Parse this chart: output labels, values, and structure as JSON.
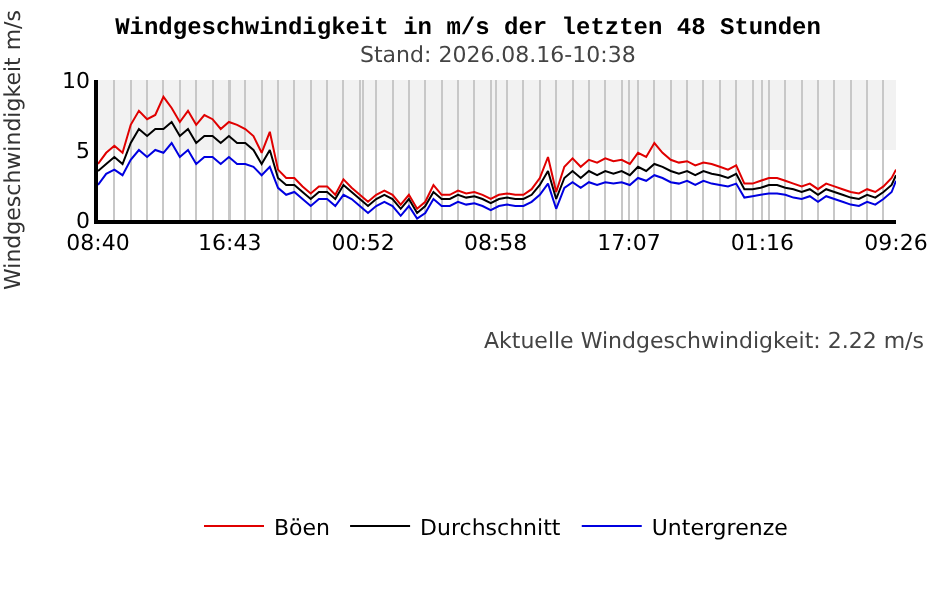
{
  "chart_data": {
    "type": "line",
    "title": "Windgeschwindigkeit in m/s der letzten 48 Stunden",
    "subtitle": "Stand: 2026.08.16-10:38",
    "ylabel": "Windgeschwindigkeit m/s",
    "annotations": [
      "Aktuelle Windgeschwindigkeit: 2.22 m/s"
    ],
    "x": [
      "2026-08-14T08:40",
      "2026-08-14T09:10",
      "2026-08-14T09:40",
      "2026-08-14T10:10",
      "2026-08-14T10:40",
      "2026-08-14T11:10",
      "2026-08-14T11:40",
      "2026-08-14T12:10",
      "2026-08-14T12:40",
      "2026-08-14T13:10",
      "2026-08-14T13:40",
      "2026-08-14T14:10",
      "2026-08-14T14:40",
      "2026-08-14T15:10",
      "2026-08-14T15:40",
      "2026-08-14T16:10",
      "2026-08-14T16:40",
      "2026-08-14T17:10",
      "2026-08-14T17:40",
      "2026-08-14T18:10",
      "2026-08-14T18:40",
      "2026-08-14T19:10",
      "2026-08-14T19:40",
      "2026-08-14T20:10",
      "2026-08-14T20:40",
      "2026-08-14T21:10",
      "2026-08-14T21:40",
      "2026-08-14T22:10",
      "2026-08-14T22:40",
      "2026-08-14T23:10",
      "2026-08-14T23:40",
      "2026-08-15T00:10",
      "2026-08-15T00:40",
      "2026-08-15T01:10",
      "2026-08-15T01:40",
      "2026-08-15T02:10",
      "2026-08-15T02:40",
      "2026-08-15T03:10",
      "2026-08-15T03:40",
      "2026-08-15T04:10",
      "2026-08-15T04:40",
      "2026-08-15T05:10",
      "2026-08-15T05:40",
      "2026-08-15T06:10",
      "2026-08-15T06:40",
      "2026-08-15T07:10",
      "2026-08-15T07:40",
      "2026-08-15T08:10",
      "2026-08-15T08:40",
      "2026-08-15T09:10",
      "2026-08-15T09:40",
      "2026-08-15T10:10",
      "2026-08-15T10:40",
      "2026-08-15T11:10",
      "2026-08-15T11:40",
      "2026-08-15T12:10",
      "2026-08-15T12:40",
      "2026-08-15T13:10",
      "2026-08-15T13:40",
      "2026-08-15T14:10",
      "2026-08-15T14:40",
      "2026-08-15T15:10",
      "2026-08-15T15:40",
      "2026-08-15T16:10",
      "2026-08-15T16:40",
      "2026-08-15T17:10",
      "2026-08-15T17:40",
      "2026-08-15T18:10",
      "2026-08-15T18:40",
      "2026-08-15T19:10",
      "2026-08-15T19:40",
      "2026-08-15T20:10",
      "2026-08-15T20:40",
      "2026-08-15T21:10",
      "2026-08-15T21:40",
      "2026-08-15T22:10",
      "2026-08-15T22:40",
      "2026-08-15T23:10",
      "2026-08-15T23:40",
      "2026-08-16T00:10",
      "2026-08-16T00:40",
      "2026-08-16T01:10",
      "2026-08-16T01:40",
      "2026-08-16T02:10",
      "2026-08-16T02:40",
      "2026-08-16T03:10",
      "2026-08-16T03:40",
      "2026-08-16T04:10",
      "2026-08-16T04:40",
      "2026-08-16T05:10",
      "2026-08-16T05:40",
      "2026-08-16T06:10",
      "2026-08-16T06:40",
      "2026-08-16T07:10",
      "2026-08-16T07:40",
      "2026-08-16T08:10",
      "2026-08-16T08:40",
      "2026-08-16T09:10",
      "2026-08-16T09:26"
    ],
    "series": [
      {
        "name": "Böen",
        "color": "#e00000",
        "values": [
          4,
          4.8,
          5.3,
          4.8,
          6.8,
          7.8,
          7.2,
          7.5,
          8.8,
          8,
          7,
          7.8,
          6.8,
          7.5,
          7.2,
          6.5,
          7,
          6.8,
          6.5,
          6,
          4.8,
          6.3,
          3.6,
          3,
          3,
          2.4,
          1.9,
          2.4,
          2.4,
          1.8,
          2.9,
          2.3,
          1.8,
          1.3,
          1.8,
          2.1,
          1.8,
          1.1,
          1.8,
          0.8,
          1.3,
          2.5,
          1.8,
          1.8,
          2.1,
          1.9,
          2,
          1.8,
          1.5,
          1.8,
          1.9,
          1.8,
          1.8,
          2.2,
          3,
          4.5,
          2,
          3.8,
          4.4,
          3.8,
          4.3,
          4.1,
          4.4,
          4.2,
          4.3,
          4,
          4.8,
          4.5,
          5.5,
          4.8,
          4.3,
          4.1,
          4.2,
          3.9,
          4.1,
          4,
          3.8,
          3.6,
          3.9,
          2.6,
          2.6,
          2.8,
          3,
          3,
          2.8,
          2.6,
          2.4,
          2.6,
          2.2,
          2.6,
          2.4,
          2.2,
          2,
          1.9,
          2.2,
          2,
          2.4,
          3,
          3.6
        ]
      },
      {
        "name": "Durchschnitt",
        "color": "#000000",
        "values": [
          3.5,
          4,
          4.5,
          4,
          5.5,
          6.5,
          6,
          6.5,
          6.5,
          7,
          6,
          6.5,
          5.5,
          6,
          6,
          5.5,
          6,
          5.5,
          5.5,
          5,
          4,
          5,
          3,
          2.5,
          2.5,
          2,
          1.5,
          2,
          2,
          1.5,
          2.5,
          2,
          1.5,
          1,
          1.5,
          1.8,
          1.5,
          0.8,
          1.5,
          0.5,
          1,
          2,
          1.5,
          1.5,
          1.8,
          1.6,
          1.7,
          1.5,
          1.2,
          1.5,
          1.6,
          1.5,
          1.5,
          1.8,
          2.5,
          3.5,
          1.5,
          3,
          3.5,
          3,
          3.5,
          3.2,
          3.5,
          3.3,
          3.5,
          3.2,
          3.8,
          3.5,
          4,
          3.8,
          3.5,
          3.3,
          3.5,
          3.2,
          3.5,
          3.3,
          3.2,
          3,
          3.3,
          2.2,
          2.2,
          2.3,
          2.5,
          2.5,
          2.3,
          2.2,
          2,
          2.2,
          1.8,
          2.2,
          2,
          1.8,
          1.6,
          1.5,
          1.8,
          1.6,
          2,
          2.5,
          3.2
        ]
      },
      {
        "name": "Untergrenze",
        "color": "#0000e0",
        "values": [
          2.5,
          3.3,
          3.6,
          3.2,
          4.3,
          5,
          4.5,
          5,
          4.8,
          5.5,
          4.5,
          5,
          4,
          4.5,
          4.5,
          4,
          4.5,
          4,
          4,
          3.8,
          3.2,
          3.8,
          2.3,
          1.8,
          2,
          1.5,
          1,
          1.5,
          1.5,
          1,
          1.8,
          1.5,
          1,
          0.5,
          1,
          1.3,
          1,
          0.3,
          1,
          0.1,
          0.5,
          1.5,
          1,
          1,
          1.3,
          1.1,
          1.2,
          1,
          0.7,
          1,
          1.1,
          1,
          1,
          1.3,
          1.8,
          2.6,
          0.8,
          2.3,
          2.7,
          2.3,
          2.7,
          2.5,
          2.7,
          2.6,
          2.7,
          2.5,
          3,
          2.8,
          3.2,
          3,
          2.7,
          2.6,
          2.8,
          2.5,
          2.8,
          2.6,
          2.5,
          2.4,
          2.6,
          1.6,
          1.7,
          1.8,
          1.9,
          1.9,
          1.8,
          1.6,
          1.5,
          1.7,
          1.3,
          1.7,
          1.5,
          1.3,
          1.1,
          1,
          1.3,
          1.1,
          1.5,
          2,
          2.8
        ]
      }
    ],
    "xlim": [
      "2026-08-14T08:40",
      "2026-08-16T09:26"
    ],
    "xticks": [
      {
        "value": "2026-08-14T08:40",
        "label": "08:40"
      },
      {
        "value": "2026-08-14T16:43",
        "label": "16:43"
      },
      {
        "value": "2026-08-15T00:52",
        "label": "00:52"
      },
      {
        "value": "2026-08-15T08:58",
        "label": "08:58"
      },
      {
        "value": "2026-08-15T17:07",
        "label": "17:07"
      },
      {
        "value": "2026-08-16T01:16",
        "label": "01:16"
      },
      {
        "value": "2026-08-16T09:26",
        "label": "09:26"
      }
    ],
    "ylim": [
      0,
      10
    ],
    "yticks": [
      0,
      5,
      10
    ],
    "bands": [
      {
        "axis": "y",
        "from": 5,
        "to": 10,
        "color": "#f2f2f2"
      }
    ],
    "grid": "x",
    "legend": "bottom",
    "marker": "none",
    "line_style": "solid"
  }
}
